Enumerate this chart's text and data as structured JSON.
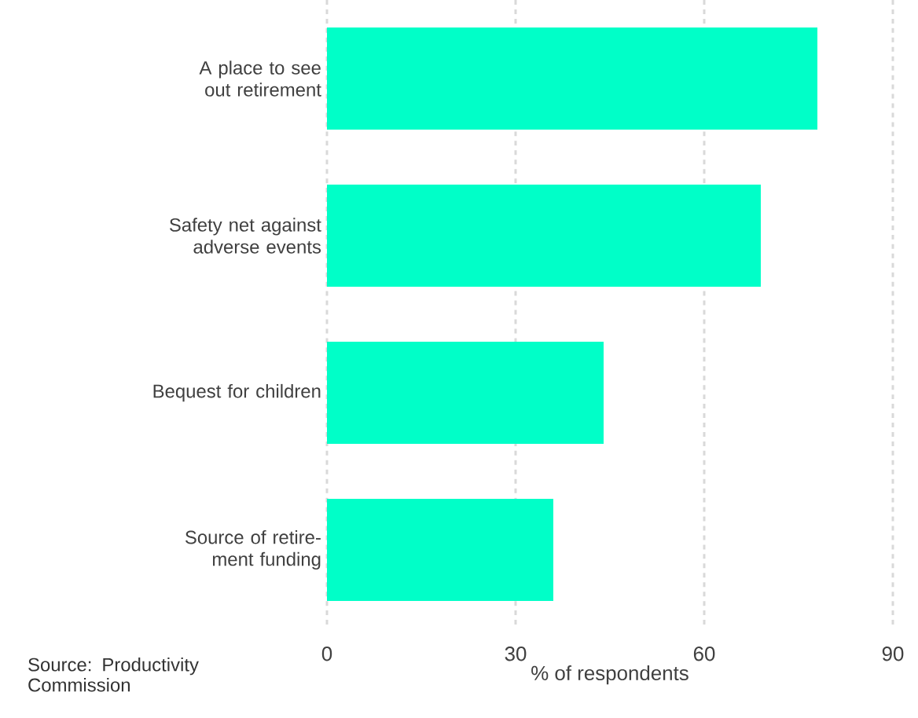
{
  "chart_data": {
    "type": "bar",
    "orientation": "horizontal",
    "categories": [
      "A place to see out retirement",
      "Safety net against adverse events",
      "Bequest for children",
      "Source of retire-ment funding"
    ],
    "values": [
      78,
      69,
      44,
      36
    ],
    "color": "#00ffc8",
    "xlim": [
      0,
      90
    ],
    "xticks": [
      0,
      30,
      60,
      90
    ],
    "grid": "x",
    "xlabel": "% of respondents",
    "annotations": [
      "Source: Productivity Commission"
    ]
  }
}
